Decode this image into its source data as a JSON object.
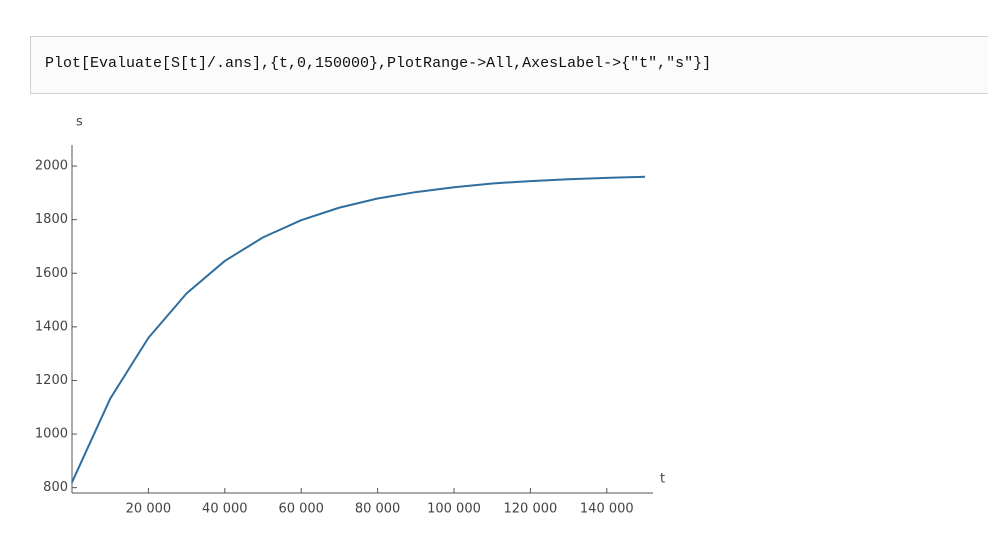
{
  "input": "Plot[Evaluate[S[t]/.ans],{t,0,150000},PlotRange->All,AxesLabel->{\"t\",\"s\"}]",
  "chart_data": {
    "type": "line",
    "x_label": "t",
    "y_label": "s",
    "x": [
      0,
      10000,
      20000,
      30000,
      40000,
      50000,
      60000,
      70000,
      80000,
      90000,
      100000,
      110000,
      120000,
      130000,
      140000,
      150000
    ],
    "series": [
      {
        "color": "#2f6fa0",
        "values": [
          820,
          1132,
          1359,
          1525,
          1646,
          1734,
          1798,
          1845,
          1879,
          1903,
          1921,
          1935,
          1944,
          1951,
          1956,
          1960
        ]
      }
    ],
    "xlim": [
      0,
      150000
    ],
    "ylim": [
      780,
      2060
    ],
    "xticks": [
      {
        "value": 20000,
        "label": "20 000"
      },
      {
        "value": 40000,
        "label": "40 000"
      },
      {
        "value": 60000,
        "label": "60 000"
      },
      {
        "value": 80000,
        "label": "80 000"
      },
      {
        "value": 100000,
        "label": "100 000"
      },
      {
        "value": 120000,
        "label": "120 000"
      },
      {
        "value": 140000,
        "label": "140 000"
      }
    ],
    "yticks": [
      800,
      1000,
      1200,
      1400,
      1600,
      1800,
      2000
    ]
  }
}
